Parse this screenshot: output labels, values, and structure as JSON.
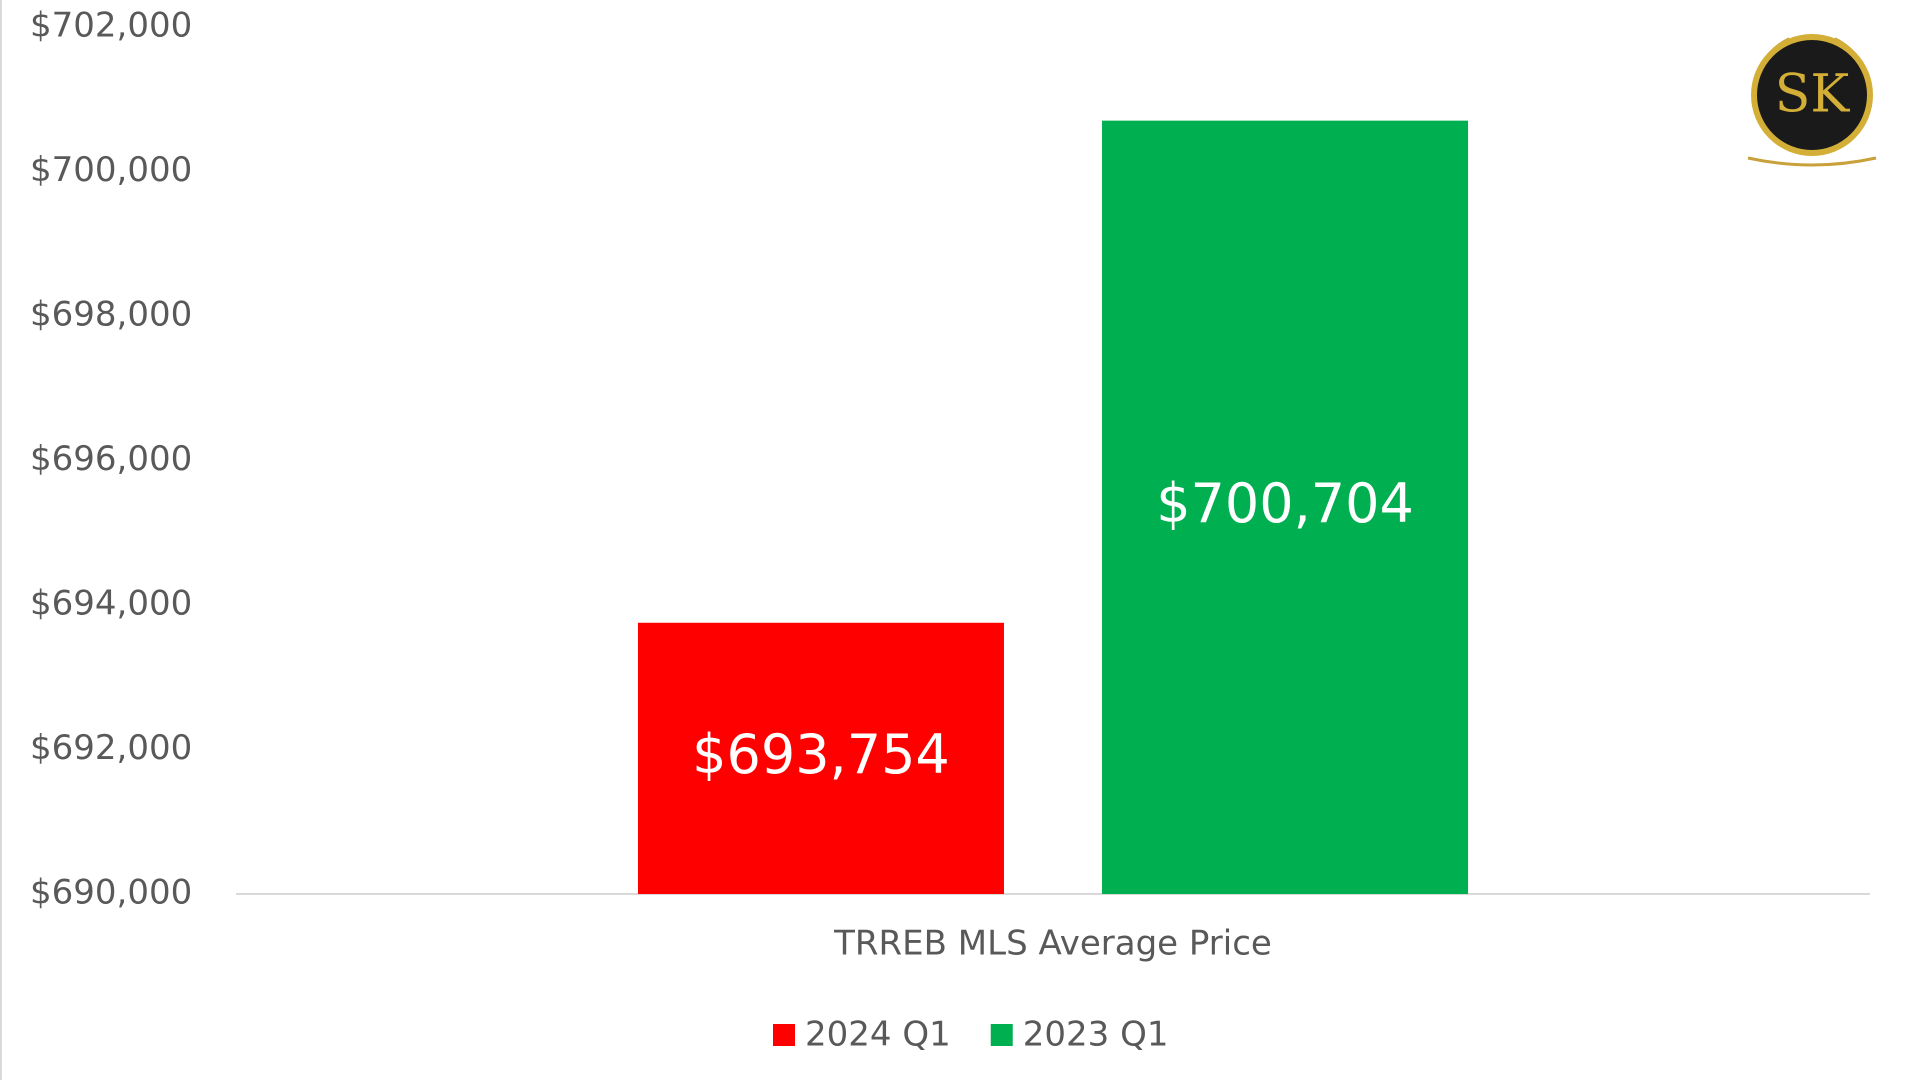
{
  "chart_data": {
    "type": "bar",
    "logo": "SK",
    "categories": [
      "TRREB MLS Average Price"
    ],
    "series": [
      {
        "name": "2024 Q1",
        "color": "#ff0000",
        "values": [
          693754
        ],
        "value_labels": [
          "$693,754"
        ]
      },
      {
        "name": "2023 Q1",
        "color": "#00b050",
        "values": [
          700704
        ],
        "value_labels": [
          "$700,704"
        ]
      }
    ],
    "ylim": [
      690000,
      702000
    ],
    "yticks": [
      {
        "value": 690000,
        "label": "$690,000"
      },
      {
        "value": 692000,
        "label": "$692,000"
      },
      {
        "value": 694000,
        "label": "$694,000"
      },
      {
        "value": 696000,
        "label": "$696,000"
      },
      {
        "value": 698000,
        "label": "$698,000"
      },
      {
        "value": 700000,
        "label": "$700,000"
      },
      {
        "value": 702000,
        "label": "$702,000"
      }
    ],
    "grid": false,
    "legend": "bottom"
  }
}
